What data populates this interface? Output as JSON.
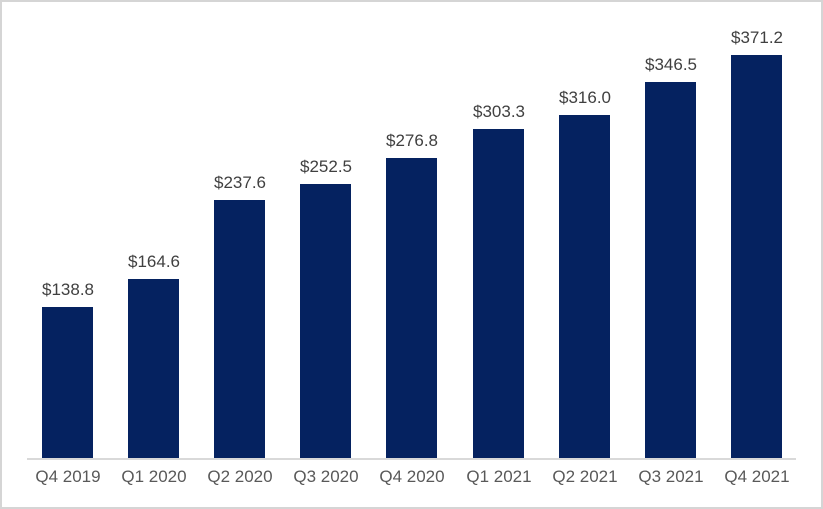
{
  "window": {
    "background": "#ffffff",
    "border_color": "#d5d5d5"
  },
  "chart_data": {
    "type": "bar",
    "title": "",
    "xlabel": "",
    "ylabel": "",
    "categories": [
      "Q4 2019",
      "Q1 2020",
      "Q2 2020",
      "Q3 2020",
      "Q4 2020",
      "Q1 2021",
      "Q2 2021",
      "Q3 2021",
      "Q4 2021"
    ],
    "values": [
      138.8,
      164.6,
      237.6,
      252.5,
      276.8,
      303.3,
      316.0,
      346.5,
      371.2
    ],
    "data_labels": [
      "$138.8",
      "$164.6",
      "$237.6",
      "$252.5",
      "$276.8",
      "$303.3",
      "$316.0",
      "$346.5",
      "$371.2"
    ],
    "value_prefix": "$",
    "ylim": [
      0,
      400
    ],
    "grid": false,
    "legend": false,
    "y_axis_visible": false,
    "x_axis_line": true,
    "bar_color": "#052260",
    "value_label_color": "#404040",
    "axis_label_color": "#595959",
    "axis_line_color": "#d9d9d9"
  }
}
